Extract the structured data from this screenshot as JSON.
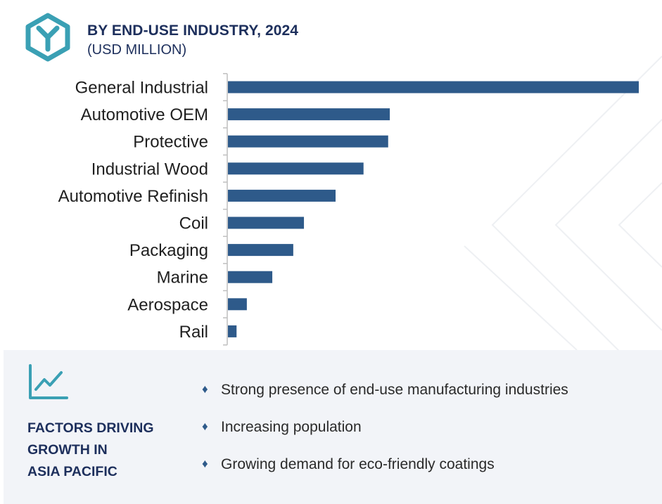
{
  "header": {
    "title": "BY END-USE INDUSTRY, 2024",
    "subtitle": "(USD MILLION)",
    "logo_icon": "y-hexagon-logo-icon"
  },
  "colors": {
    "bar": "#2e5a8a",
    "heading": "#1d2f5c",
    "logo_teal": "#3aa0b4",
    "footer_bg": "#f2f4f8"
  },
  "chart_data": {
    "type": "bar",
    "orientation": "horizontal",
    "categories": [
      "General Industrial",
      "Automotive OEM",
      "Protective",
      "Industrial Wood",
      "Automotive Refinish",
      "Coil",
      "Packaging",
      "Marine",
      "Aerospace",
      "Rail"
    ],
    "values": [
      100,
      39.4,
      39.0,
      33.0,
      26.2,
      18.5,
      15.9,
      10.8,
      4.6,
      2.1
    ],
    "xlim": [
      0,
      100
    ],
    "grid": false,
    "legend": "none",
    "value_labels_shown": false
  },
  "footer": {
    "icon": "line-chart-icon",
    "title_lines": [
      "FACTORS DRIVING",
      "GROWTH IN",
      "ASIA PACIFIC"
    ],
    "bullet_glyph": "♦",
    "factors": [
      "Strong presence of end-use manufacturing industries",
      "Increasing population",
      "Growing demand for eco-friendly coatings"
    ]
  }
}
